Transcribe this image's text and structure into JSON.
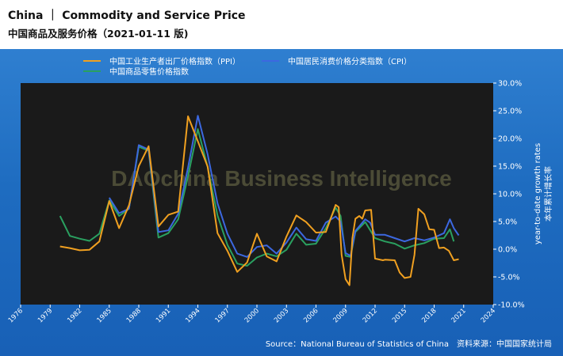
{
  "header": {
    "title": "China ｜ Commodity and Service Price",
    "subtitle": "中国商品及服务价格（2021-01-11 版)"
  },
  "watermark": "DAOchina Business Intelligence",
  "source": "Source：National Bureau of Statistics of China　资料来源：中国国家统计局",
  "axis": {
    "ylabel_en": "year-to-date growth rates",
    "ylabel_cn": "本年累计增长率"
  },
  "colors": {
    "plot_bg": "#1a1a1a",
    "ppi": "#f0a020",
    "cpi": "#3c68e0",
    "retail": "#2aa060"
  },
  "chart_data": {
    "type": "line",
    "xlim": [
      1976,
      2024
    ],
    "ylim": [
      -10,
      30
    ],
    "x_ticks": [
      1976,
      1979,
      1982,
      1985,
      1988,
      1991,
      1994,
      1997,
      2000,
      2003,
      2006,
      2009,
      2012,
      2015,
      2018,
      2021,
      2024
    ],
    "y_ticks": [
      -10,
      -5,
      0,
      5,
      10,
      15,
      20,
      25,
      30
    ],
    "y_tick_labels": [
      "-10.0%",
      "-5.0%",
      "0.0%",
      "5.0%",
      "10.0%",
      "15.0%",
      "20.0%",
      "25.0%",
      "30.0%"
    ],
    "grid": false,
    "legend": "top",
    "series": [
      {
        "name": "中国工业生产者出厂价格指数（PPI）",
        "color_key": "ppi",
        "points": [
          [
            1980,
            0.5
          ],
          [
            1981,
            0.2
          ],
          [
            1982,
            -0.2
          ],
          [
            1983,
            -0.1
          ],
          [
            1984,
            1.4
          ],
          [
            1985,
            8.7
          ],
          [
            1986,
            3.8
          ],
          [
            1987,
            7.9
          ],
          [
            1988,
            15.0
          ],
          [
            1989,
            18.6
          ],
          [
            1990,
            4.1
          ],
          [
            1991,
            6.2
          ],
          [
            1992,
            6.8
          ],
          [
            1993,
            24.0
          ],
          [
            1994,
            19.5
          ],
          [
            1995,
            14.9
          ],
          [
            1996,
            2.9
          ],
          [
            1997,
            -0.3
          ],
          [
            1998,
            -4.1
          ],
          [
            1999,
            -2.4
          ],
          [
            2000,
            2.8
          ],
          [
            2001,
            -1.3
          ],
          [
            2002,
            -2.2
          ],
          [
            2003,
            2.3
          ],
          [
            2004,
            6.1
          ],
          [
            2005,
            4.9
          ],
          [
            2006,
            3.0
          ],
          [
            2007,
            3.1
          ],
          [
            2008,
            8.0
          ],
          [
            2008.3,
            7.6
          ],
          [
            2008.6,
            -1.0
          ],
          [
            2009,
            -5.4
          ],
          [
            2009.4,
            -6.5
          ],
          [
            2009.7,
            2.0
          ],
          [
            2010,
            5.5
          ],
          [
            2010.4,
            6.0
          ],
          [
            2010.7,
            5.5
          ],
          [
            2011,
            7.0
          ],
          [
            2011.6,
            7.1
          ],
          [
            2012,
            -1.7
          ],
          [
            2012.8,
            -2.0
          ],
          [
            2013,
            -1.9
          ],
          [
            2014,
            -2.0
          ],
          [
            2014.5,
            -4.2
          ],
          [
            2015,
            -5.2
          ],
          [
            2015.6,
            -5.0
          ],
          [
            2016,
            -1.0
          ],
          [
            2016.4,
            7.3
          ],
          [
            2017,
            6.3
          ],
          [
            2017.5,
            3.6
          ],
          [
            2018,
            3.5
          ],
          [
            2018.5,
            0.2
          ],
          [
            2019,
            0.3
          ],
          [
            2019.5,
            -0.3
          ],
          [
            2020,
            -2.0
          ],
          [
            2020.5,
            -1.8
          ]
        ]
      },
      {
        "name": "中国居民消费价格分类指数（CPI）",
        "color_key": "cpi",
        "points": [
          [
            1985,
            9.3
          ],
          [
            1986,
            6.5
          ],
          [
            1987,
            7.3
          ],
          [
            1988,
            18.8
          ],
          [
            1989,
            18.0
          ],
          [
            1990,
            3.1
          ],
          [
            1991,
            3.4
          ],
          [
            1992,
            6.4
          ],
          [
            1993,
            14.7
          ],
          [
            1994,
            24.1
          ],
          [
            1995,
            17.1
          ],
          [
            1996,
            8.3
          ],
          [
            1997,
            2.8
          ],
          [
            1998,
            -0.8
          ],
          [
            1999,
            -1.4
          ],
          [
            2000,
            0.4
          ],
          [
            2001,
            0.7
          ],
          [
            2002,
            -0.8
          ],
          [
            2003,
            1.2
          ],
          [
            2004,
            3.9
          ],
          [
            2005,
            1.8
          ],
          [
            2006,
            1.5
          ],
          [
            2007,
            4.8
          ],
          [
            2008,
            5.9
          ],
          [
            2008.5,
            5.0
          ],
          [
            2009,
            -0.7
          ],
          [
            2009.5,
            -1.2
          ],
          [
            2010,
            3.3
          ],
          [
            2011,
            5.4
          ],
          [
            2011.5,
            4.8
          ],
          [
            2012,
            2.6
          ],
          [
            2013,
            2.6
          ],
          [
            2014,
            2.0
          ],
          [
            2015,
            1.4
          ],
          [
            2016,
            2.0
          ],
          [
            2017,
            1.6
          ],
          [
            2018,
            2.1
          ],
          [
            2019,
            2.9
          ],
          [
            2019.6,
            5.4
          ],
          [
            2020,
            3.8
          ],
          [
            2020.5,
            2.5
          ]
        ]
      },
      {
        "name": "中国商品零售价格指数",
        "color_key": "retail",
        "points": [
          [
            1980,
            6.0
          ],
          [
            1981,
            2.4
          ],
          [
            1982,
            1.9
          ],
          [
            1983,
            1.5
          ],
          [
            1984,
            2.8
          ],
          [
            1985,
            8.8
          ],
          [
            1986,
            6.0
          ],
          [
            1987,
            7.3
          ],
          [
            1988,
            18.5
          ],
          [
            1989,
            17.8
          ],
          [
            1990,
            2.1
          ],
          [
            1991,
            2.9
          ],
          [
            1992,
            5.4
          ],
          [
            1993,
            13.2
          ],
          [
            1994,
            21.7
          ],
          [
            1995,
            14.8
          ],
          [
            1996,
            6.1
          ],
          [
            1997,
            0.8
          ],
          [
            1998,
            -2.6
          ],
          [
            1999,
            -3.0
          ],
          [
            2000,
            -1.5
          ],
          [
            2001,
            -0.8
          ],
          [
            2002,
            -1.3
          ],
          [
            2003,
            -0.1
          ],
          [
            2004,
            2.8
          ],
          [
            2005,
            0.8
          ],
          [
            2006,
            1.0
          ],
          [
            2007,
            3.8
          ],
          [
            2008,
            7.5
          ],
          [
            2008.5,
            6.0
          ],
          [
            2009,
            -1.2
          ],
          [
            2009.5,
            -1.4
          ],
          [
            2010,
            3.1
          ],
          [
            2011,
            4.9
          ],
          [
            2012,
            2.0
          ],
          [
            2013,
            1.4
          ],
          [
            2014,
            1.0
          ],
          [
            2015,
            0.1
          ],
          [
            2016,
            0.7
          ],
          [
            2017,
            1.1
          ],
          [
            2018,
            1.9
          ],
          [
            2019,
            2.0
          ],
          [
            2019.6,
            3.6
          ],
          [
            2020,
            1.4
          ]
        ]
      }
    ]
  }
}
